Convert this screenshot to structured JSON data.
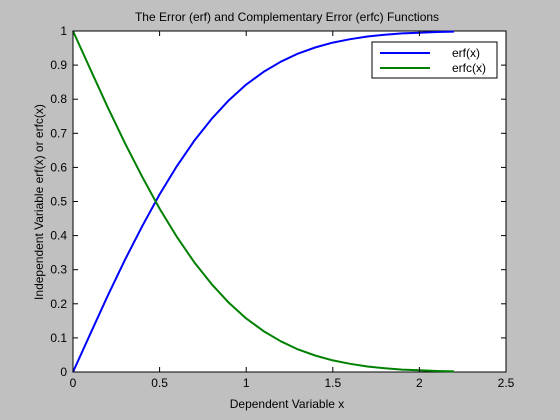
{
  "window": {
    "background": "#c0c0c0",
    "plot_background": "#ffffff"
  },
  "chart_data": {
    "type": "line",
    "title": "The Error (erf) and Complementary Error (erfc) Functions",
    "xlabel": "Dependent Variable x",
    "ylabel": "Independent Variable erf(x) or erfc(x)",
    "xlim": [
      0,
      2.5
    ],
    "ylim": [
      0,
      1
    ],
    "xticks": [
      0,
      0.5,
      1,
      1.5,
      2,
      2.5
    ],
    "xtick_labels": [
      "0",
      "0.5",
      "1",
      "1.5",
      "2",
      "2.5"
    ],
    "yticks": [
      0,
      0.1,
      0.2,
      0.3,
      0.4,
      0.5,
      0.6,
      0.7,
      0.8,
      0.9,
      1
    ],
    "ytick_labels": [
      "0",
      "0.1",
      "0.2",
      "0.3",
      "0.4",
      "0.5",
      "0.6",
      "0.7",
      "0.8",
      "0.9",
      "1"
    ],
    "grid": false,
    "legend_position": "top-right",
    "x": [
      0,
      0.1,
      0.2,
      0.3,
      0.4,
      0.5,
      0.6,
      0.7,
      0.8,
      0.9,
      1.0,
      1.1,
      1.2,
      1.3,
      1.4,
      1.5,
      1.6,
      1.7,
      1.8,
      1.9,
      2.0,
      2.1,
      2.2
    ],
    "series": [
      {
        "name": "erf(x)",
        "color": "#0000ff",
        "values": [
          0,
          0.112,
          0.223,
          0.329,
          0.428,
          0.521,
          0.604,
          0.678,
          0.742,
          0.797,
          0.843,
          0.88,
          0.91,
          0.934,
          0.952,
          0.966,
          0.976,
          0.984,
          0.989,
          0.993,
          0.995,
          0.997,
          0.998
        ]
      },
      {
        "name": "erfc(x)",
        "color": "#008000",
        "values": [
          1,
          0.888,
          0.777,
          0.671,
          0.572,
          0.479,
          0.396,
          0.322,
          0.258,
          0.203,
          0.157,
          0.12,
          0.09,
          0.066,
          0.048,
          0.034,
          0.024,
          0.016,
          0.011,
          0.007,
          0.005,
          0.003,
          0.002
        ]
      }
    ]
  }
}
